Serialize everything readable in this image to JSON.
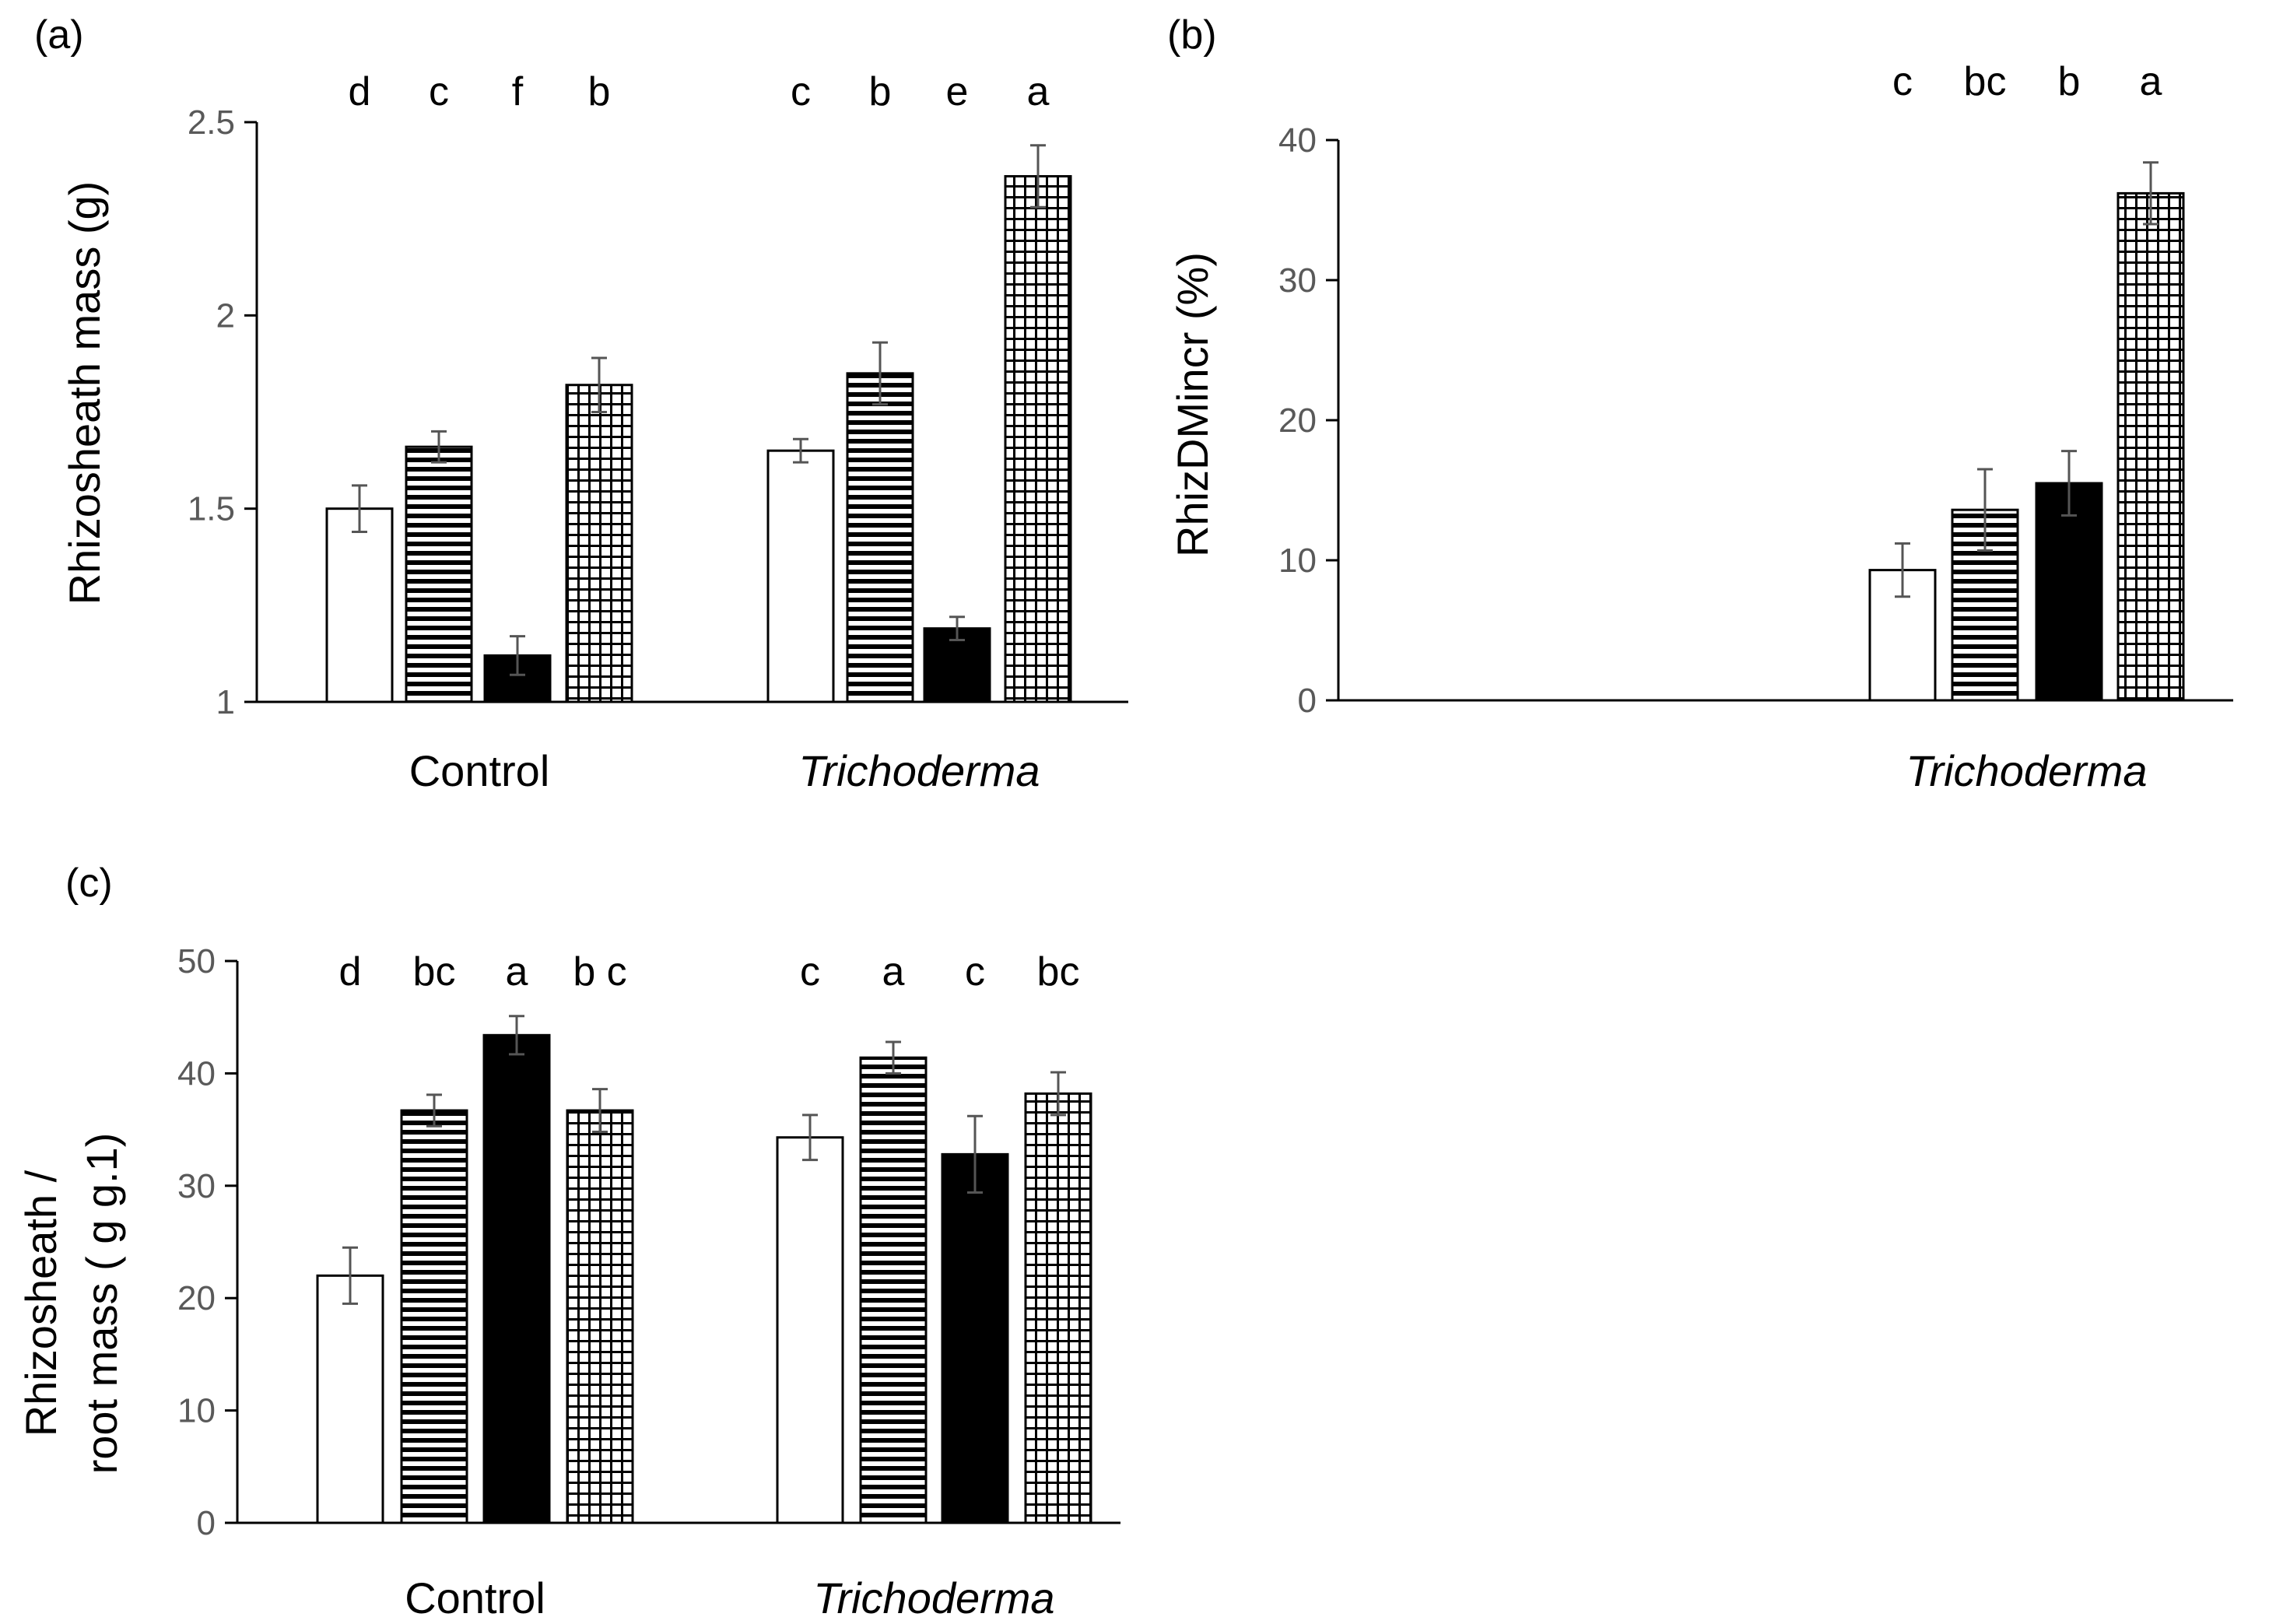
{
  "chart_data": [
    {
      "id": "a",
      "type": "bar",
      "panel_label": "(a)",
      "ylabel": "Rhizosheath mass (g)",
      "ylim": [
        1,
        2.5
      ],
      "yticks": [
        {
          "v": 1,
          "label": "1"
        },
        {
          "v": 1.5,
          "label": "1.5"
        },
        {
          "v": 2,
          "label": "2"
        },
        {
          "v": 2.5,
          "label": "2.5"
        }
      ],
      "groups": [
        {
          "label": "Control",
          "italic": false,
          "values": [
            1.5,
            1.66,
            1.12,
            1.82
          ],
          "errors": [
            0.06,
            0.04,
            0.05,
            0.07
          ],
          "letters": [
            "d",
            "c",
            "f",
            "b"
          ]
        },
        {
          "label": "Trichoderma",
          "italic": true,
          "values": [
            1.65,
            1.85,
            1.19,
            2.36
          ],
          "errors": [
            0.03,
            0.08,
            0.03,
            0.08
          ],
          "letters": [
            "c",
            "b",
            "e",
            "a"
          ]
        }
      ],
      "fills": [
        "white",
        "hstripe",
        "black",
        "grid"
      ]
    },
    {
      "id": "b",
      "type": "bar",
      "panel_label": "(b)",
      "ylabel": "RhizDMincr (%)",
      "ylim": [
        0,
        40
      ],
      "yticks": [
        {
          "v": 0,
          "label": "0"
        },
        {
          "v": 10,
          "label": "10"
        },
        {
          "v": 20,
          "label": "20"
        },
        {
          "v": 30,
          "label": "30"
        },
        {
          "v": 40,
          "label": "40"
        }
      ],
      "groups": [
        {
          "label": "Trichoderma",
          "italic": true,
          "values": [
            9.3,
            13.6,
            15.5,
            36.2
          ],
          "errors": [
            1.9,
            2.9,
            2.3,
            2.2
          ],
          "letters": [
            "c",
            "bc",
            "b",
            "a"
          ]
        }
      ],
      "fills": [
        "white",
        "hstripe",
        "black",
        "grid"
      ]
    },
    {
      "id": "c",
      "type": "bar",
      "panel_label": "(c)",
      "ylabel_lines": [
        "Rhizosheath /",
        "root mass ( g g.1)"
      ],
      "ylim": [
        0,
        50
      ],
      "yticks": [
        {
          "v": 0,
          "label": "0"
        },
        {
          "v": 10,
          "label": "10"
        },
        {
          "v": 20,
          "label": "20"
        },
        {
          "v": 30,
          "label": "30"
        },
        {
          "v": 40,
          "label": "40"
        },
        {
          "v": 50,
          "label": "50"
        }
      ],
      "groups": [
        {
          "label": "Control",
          "italic": false,
          "values": [
            22.0,
            36.7,
            43.4,
            36.7
          ],
          "errors": [
            2.5,
            1.4,
            1.7,
            1.9
          ],
          "letters": [
            "d",
            "bc",
            "a",
            "b c"
          ]
        },
        {
          "label": "Trichoderma",
          "italic": true,
          "values": [
            34.3,
            41.4,
            32.8,
            38.2
          ],
          "errors": [
            2.0,
            1.4,
            3.4,
            1.9
          ],
          "letters": [
            "c",
            "a",
            "c",
            "bc"
          ]
        }
      ],
      "fills": [
        "white",
        "hstripe",
        "black",
        "grid"
      ]
    }
  ]
}
